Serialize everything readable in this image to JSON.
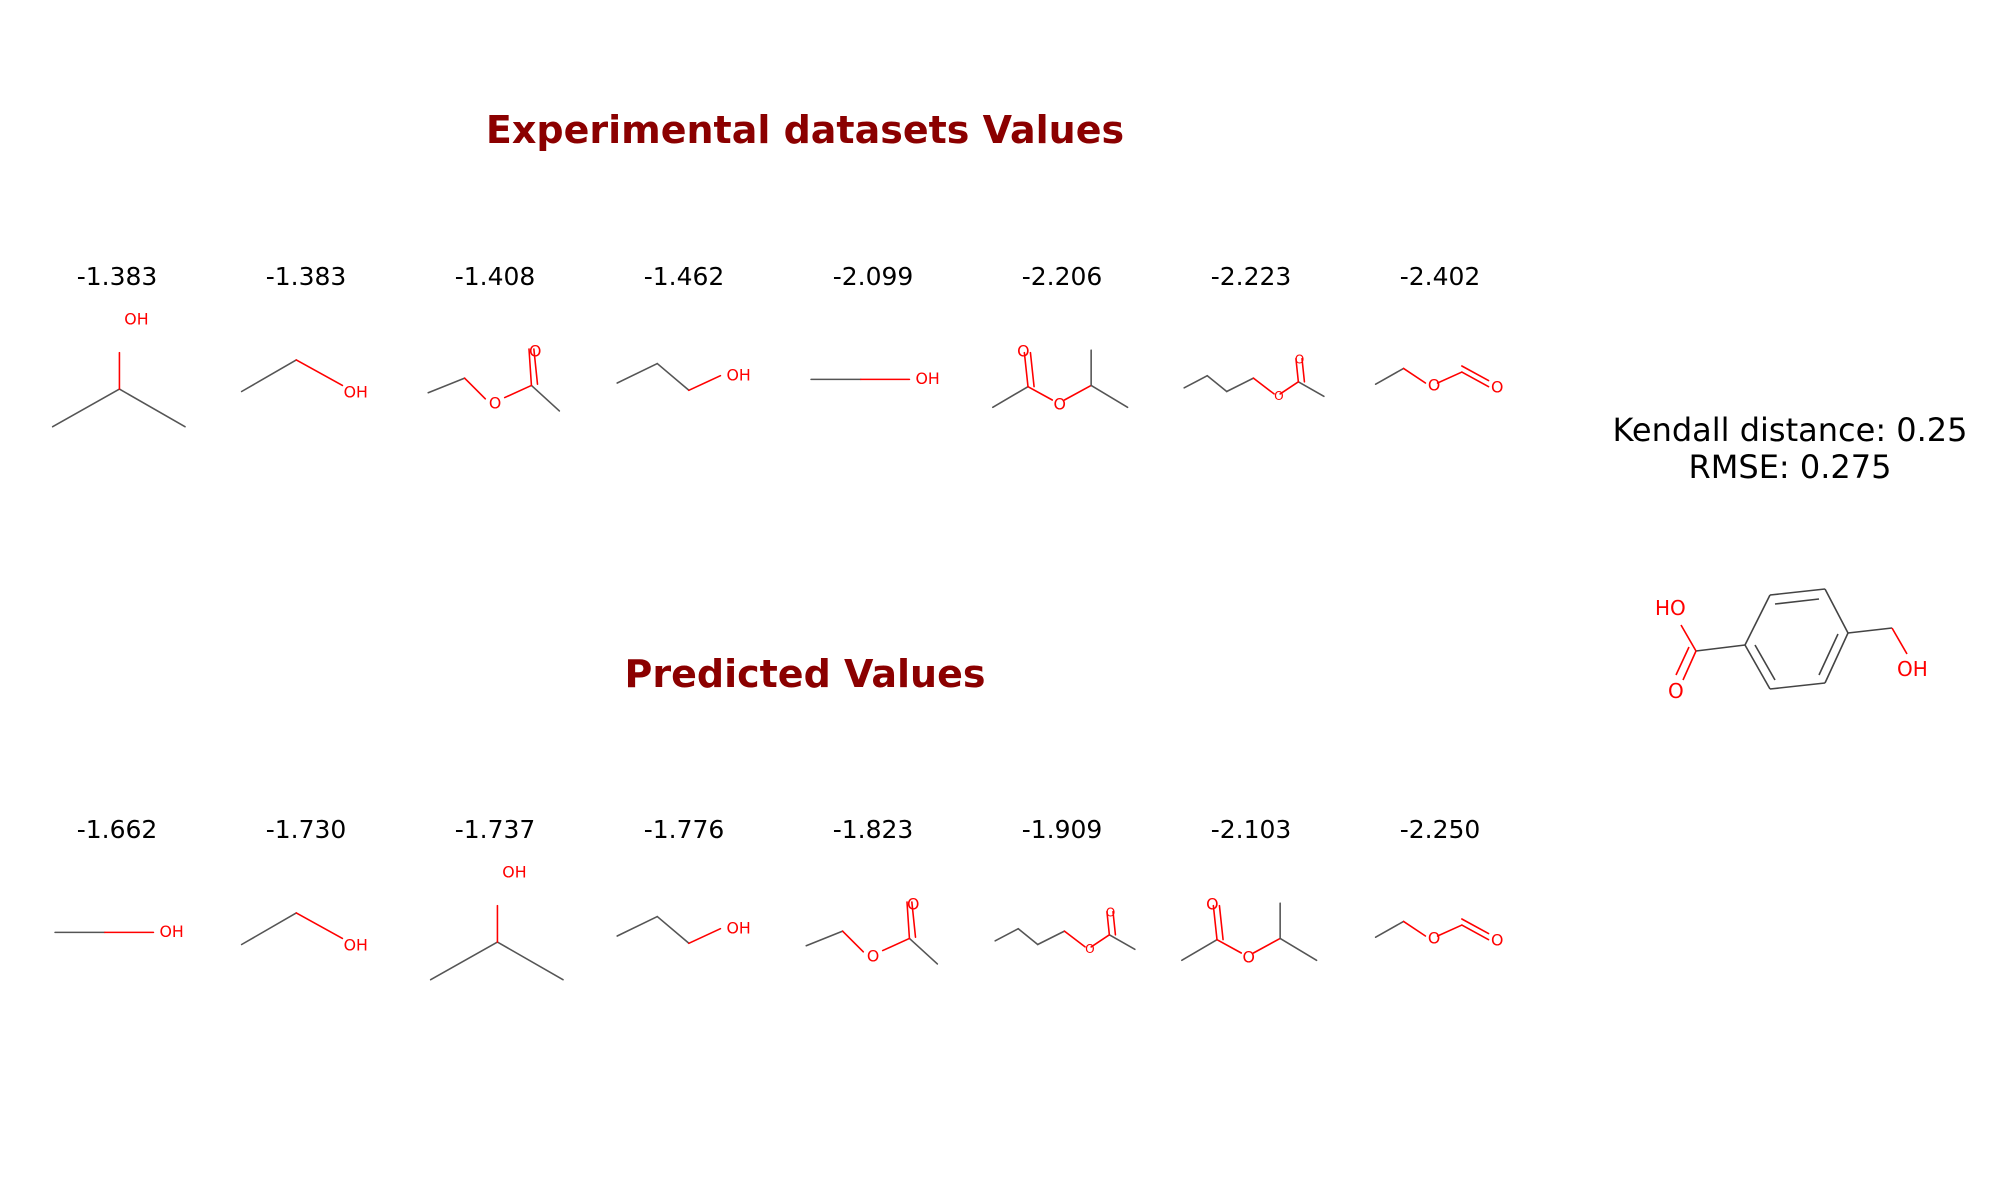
{
  "experimental": {
    "title": "Experimental datasets Values",
    "molecules": [
      {
        "value": "-1.383",
        "structure": "isopropanol"
      },
      {
        "value": "-1.383",
        "structure": "ethanol"
      },
      {
        "value": "-1.408",
        "structure": "ethyl-acetate"
      },
      {
        "value": "-1.462",
        "structure": "propanol"
      },
      {
        "value": "-2.099",
        "structure": "methanol"
      },
      {
        "value": "-2.206",
        "structure": "isopropyl-acetate"
      },
      {
        "value": "-2.223",
        "structure": "butyl-acetate"
      },
      {
        "value": "-2.402",
        "structure": "ethyl-formate"
      }
    ]
  },
  "predicted": {
    "title": "Predicted Values",
    "molecules": [
      {
        "value": "-1.662",
        "structure": "methanol"
      },
      {
        "value": "-1.730",
        "structure": "ethanol"
      },
      {
        "value": "-1.737",
        "structure": "isopropanol"
      },
      {
        "value": "-1.776",
        "structure": "propanol"
      },
      {
        "value": "-1.823",
        "structure": "ethyl-acetate"
      },
      {
        "value": "-1.909",
        "structure": "butyl-acetate"
      },
      {
        "value": "-2.103",
        "structure": "isopropyl-acetate"
      },
      {
        "value": "-2.250",
        "structure": "ethyl-formate"
      }
    ]
  },
  "stats": {
    "kendall": "Kendall distance: 0.25",
    "rmse": "RMSE: 0.275"
  },
  "query_molecule": {
    "structure": "4-hydroxymethyl-benzoic-acid",
    "labels": {
      "oh_acid": "HO",
      "carbonyl_o": "O",
      "oh_alcohol": "OH"
    }
  },
  "colors": {
    "title": "#8b0000",
    "bond": "#555555",
    "heteroatom": "#ff0000",
    "text": "#000000"
  }
}
